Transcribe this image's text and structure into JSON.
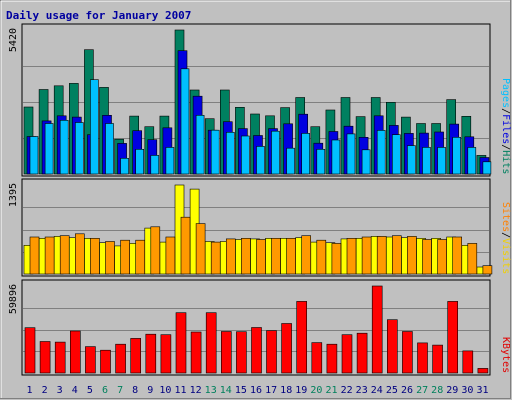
{
  "chart_data": {
    "type": "bar",
    "title": "Daily usage for January 2007",
    "categories": [
      "1",
      "2",
      "3",
      "4",
      "5",
      "6",
      "7",
      "8",
      "9",
      "10",
      "11",
      "12",
      "13",
      "14",
      "15",
      "16",
      "17",
      "18",
      "19",
      "20",
      "21",
      "22",
      "23",
      "24",
      "25",
      "26",
      "27",
      "28",
      "29",
      "30",
      "31"
    ],
    "weekend_days": [
      "6",
      "7",
      "13",
      "14",
      "20",
      "21",
      "27",
      "28"
    ],
    "grid": true,
    "panels": [
      {
        "name": "hits-files-pages",
        "ymax_label": "5420",
        "ylim": [
          0,
          5420
        ],
        "legend": [
          {
            "text": "Pages",
            "color": "#00c0ff"
          },
          {
            "text": "/",
            "color": "#000000"
          },
          {
            "text": "Files",
            "color": "#0000e0"
          },
          {
            "text": "/",
            "color": "#000000"
          },
          {
            "text": "Hits",
            "color": "#008060"
          }
        ],
        "series": [
          {
            "name": "Hits",
            "color": "#008060",
            "values": [
              2520,
              3180,
              3320,
              3410,
              4680,
              3260,
              1310,
              2180,
              1780,
              2180,
              5420,
              3160,
              2080,
              3160,
              2510,
              2260,
              2190,
              2500,
              2880,
              1780,
              2410,
              2880,
              2160,
              2880,
              2700,
              2140,
              1900,
              1900,
              2800,
              2170,
              700
            ]
          },
          {
            "name": "Files",
            "color": "#0000e0",
            "values": [
              1410,
              2000,
              2190,
              2140,
              1480,
              2210,
              1150,
              1630,
              1290,
              1740,
              4640,
              2930,
              1650,
              1970,
              1710,
              1450,
              1710,
              1890,
              2250,
              1160,
              1600,
              1800,
              1380,
              2190,
              1830,
              1530,
              1540,
              1580,
              1880,
              1400,
              620
            ]
          },
          {
            "name": "Pages",
            "color": "#00c0ff",
            "values": [
              1410,
              1900,
              2020,
              1940,
              3550,
              1900,
              590,
              930,
              700,
              1000,
              3960,
              2210,
              1650,
              1570,
              1430,
              1040,
              1610,
              970,
              1530,
              930,
              1280,
              1510,
              910,
              1640,
              1480,
              1070,
              1000,
              1000,
              1380,
              1000,
              460
            ]
          }
        ]
      },
      {
        "name": "visits-sites",
        "ymax_label": "1395",
        "ylim": [
          0,
          1395
        ],
        "legend": [
          {
            "text": "Sites",
            "color": "#ff8000"
          },
          {
            "text": "/",
            "color": "#000000"
          },
          {
            "text": "Visits",
            "color": "#f0d000"
          }
        ],
        "series": [
          {
            "name": "Visits",
            "color": "#ffff00",
            "values": [
              450,
              560,
              590,
              570,
              560,
              490,
              440,
              480,
              720,
              500,
              1395,
              1330,
              510,
              510,
              540,
              550,
              560,
              560,
              570,
              500,
              490,
              550,
              560,
              590,
              580,
              570,
              560,
              560,
              580,
              450,
              110
            ]
          },
          {
            "name": "Sites",
            "color": "#ff9900",
            "values": [
              580,
              580,
              600,
              630,
              560,
              510,
              530,
              530,
              740,
              580,
              890,
              790,
              500,
              550,
              560,
              540,
              560,
              560,
              600,
              530,
              480,
              560,
              580,
              590,
              600,
              590,
              540,
              540,
              580,
              480,
              130
            ]
          }
        ]
      },
      {
        "name": "kbytes",
        "ymax_label": "59896",
        "ylim": [
          0,
          59896
        ],
        "legend": [
          {
            "text": "KBytes",
            "color": "#e00000"
          }
        ],
        "series": [
          {
            "name": "KBytes",
            "color": "#ff0000",
            "values": [
              31200,
              21700,
              21300,
              28900,
              18200,
              15700,
              19800,
              23800,
              26700,
              26400,
              41500,
              28200,
              41500,
              28600,
              28400,
              31300,
              29200,
              34100,
              49300,
              20900,
              19800,
              26400,
              27400,
              59896,
              36700,
              28600,
              20700,
              19200,
              49300,
              15200,
              3200
            ]
          }
        ]
      }
    ]
  },
  "colors": {
    "weekday_label": "#000080",
    "weekend_label": "#00805c",
    "plot_bg": "#c0c0c0",
    "frame_bg": "#c0c0c0"
  }
}
